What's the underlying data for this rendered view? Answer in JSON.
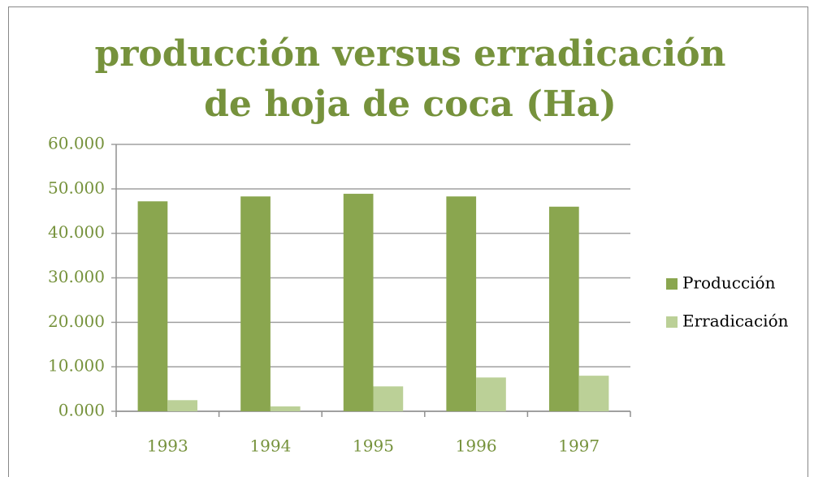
{
  "chart_data": {
    "type": "bar",
    "title": "producción versus erradicación de hoja de coca (Ha)",
    "categories": [
      "1993",
      "1994",
      "1995",
      "1996",
      "1997"
    ],
    "series": [
      {
        "name": "Producción",
        "color": "#8aa64f",
        "values": [
          47200,
          48300,
          48900,
          48300,
          46000
        ]
      },
      {
        "name": "Erradicación",
        "color": "#bbd097",
        "values": [
          2500,
          1100,
          5600,
          7600,
          8000
        ]
      }
    ],
    "ylim": [
      0,
      60000
    ],
    "yticks": [
      {
        "value": 0,
        "label": "0.000"
      },
      {
        "value": 10000,
        "label": "10.000"
      },
      {
        "value": 20000,
        "label": "20.000"
      },
      {
        "value": 30000,
        "label": "30.000"
      },
      {
        "value": 40000,
        "label": "40.000"
      },
      {
        "value": 50000,
        "label": "50.000"
      },
      {
        "value": 60000,
        "label": "60.000"
      }
    ],
    "grid": true,
    "legend": "right"
  }
}
